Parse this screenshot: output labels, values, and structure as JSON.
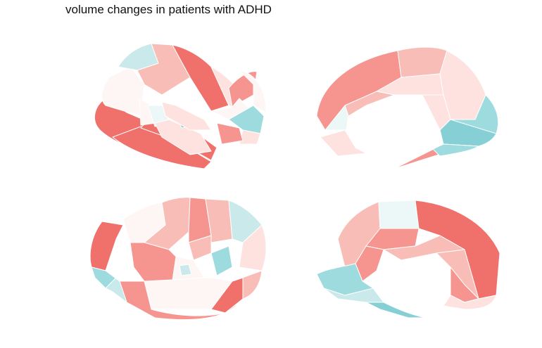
{
  "title": "volume changes in patients with ADHD",
  "colors": {
    "strong_increase": "#f0706c",
    "increase": "#f6958f",
    "mild_increase": "#f9bdb7",
    "slight_increase": "#fde2df",
    "neutral": "#fdf6f5",
    "slight_decrease": "#ecf7f7",
    "mild_decrease": "#c9e9eb",
    "decrease": "#9ddbdf",
    "strong_decrease": "#86d0d5"
  },
  "views": [
    {
      "name": "left-lateral"
    },
    {
      "name": "left-medial"
    },
    {
      "name": "right-lateral"
    },
    {
      "name": "right-medial"
    }
  ]
}
